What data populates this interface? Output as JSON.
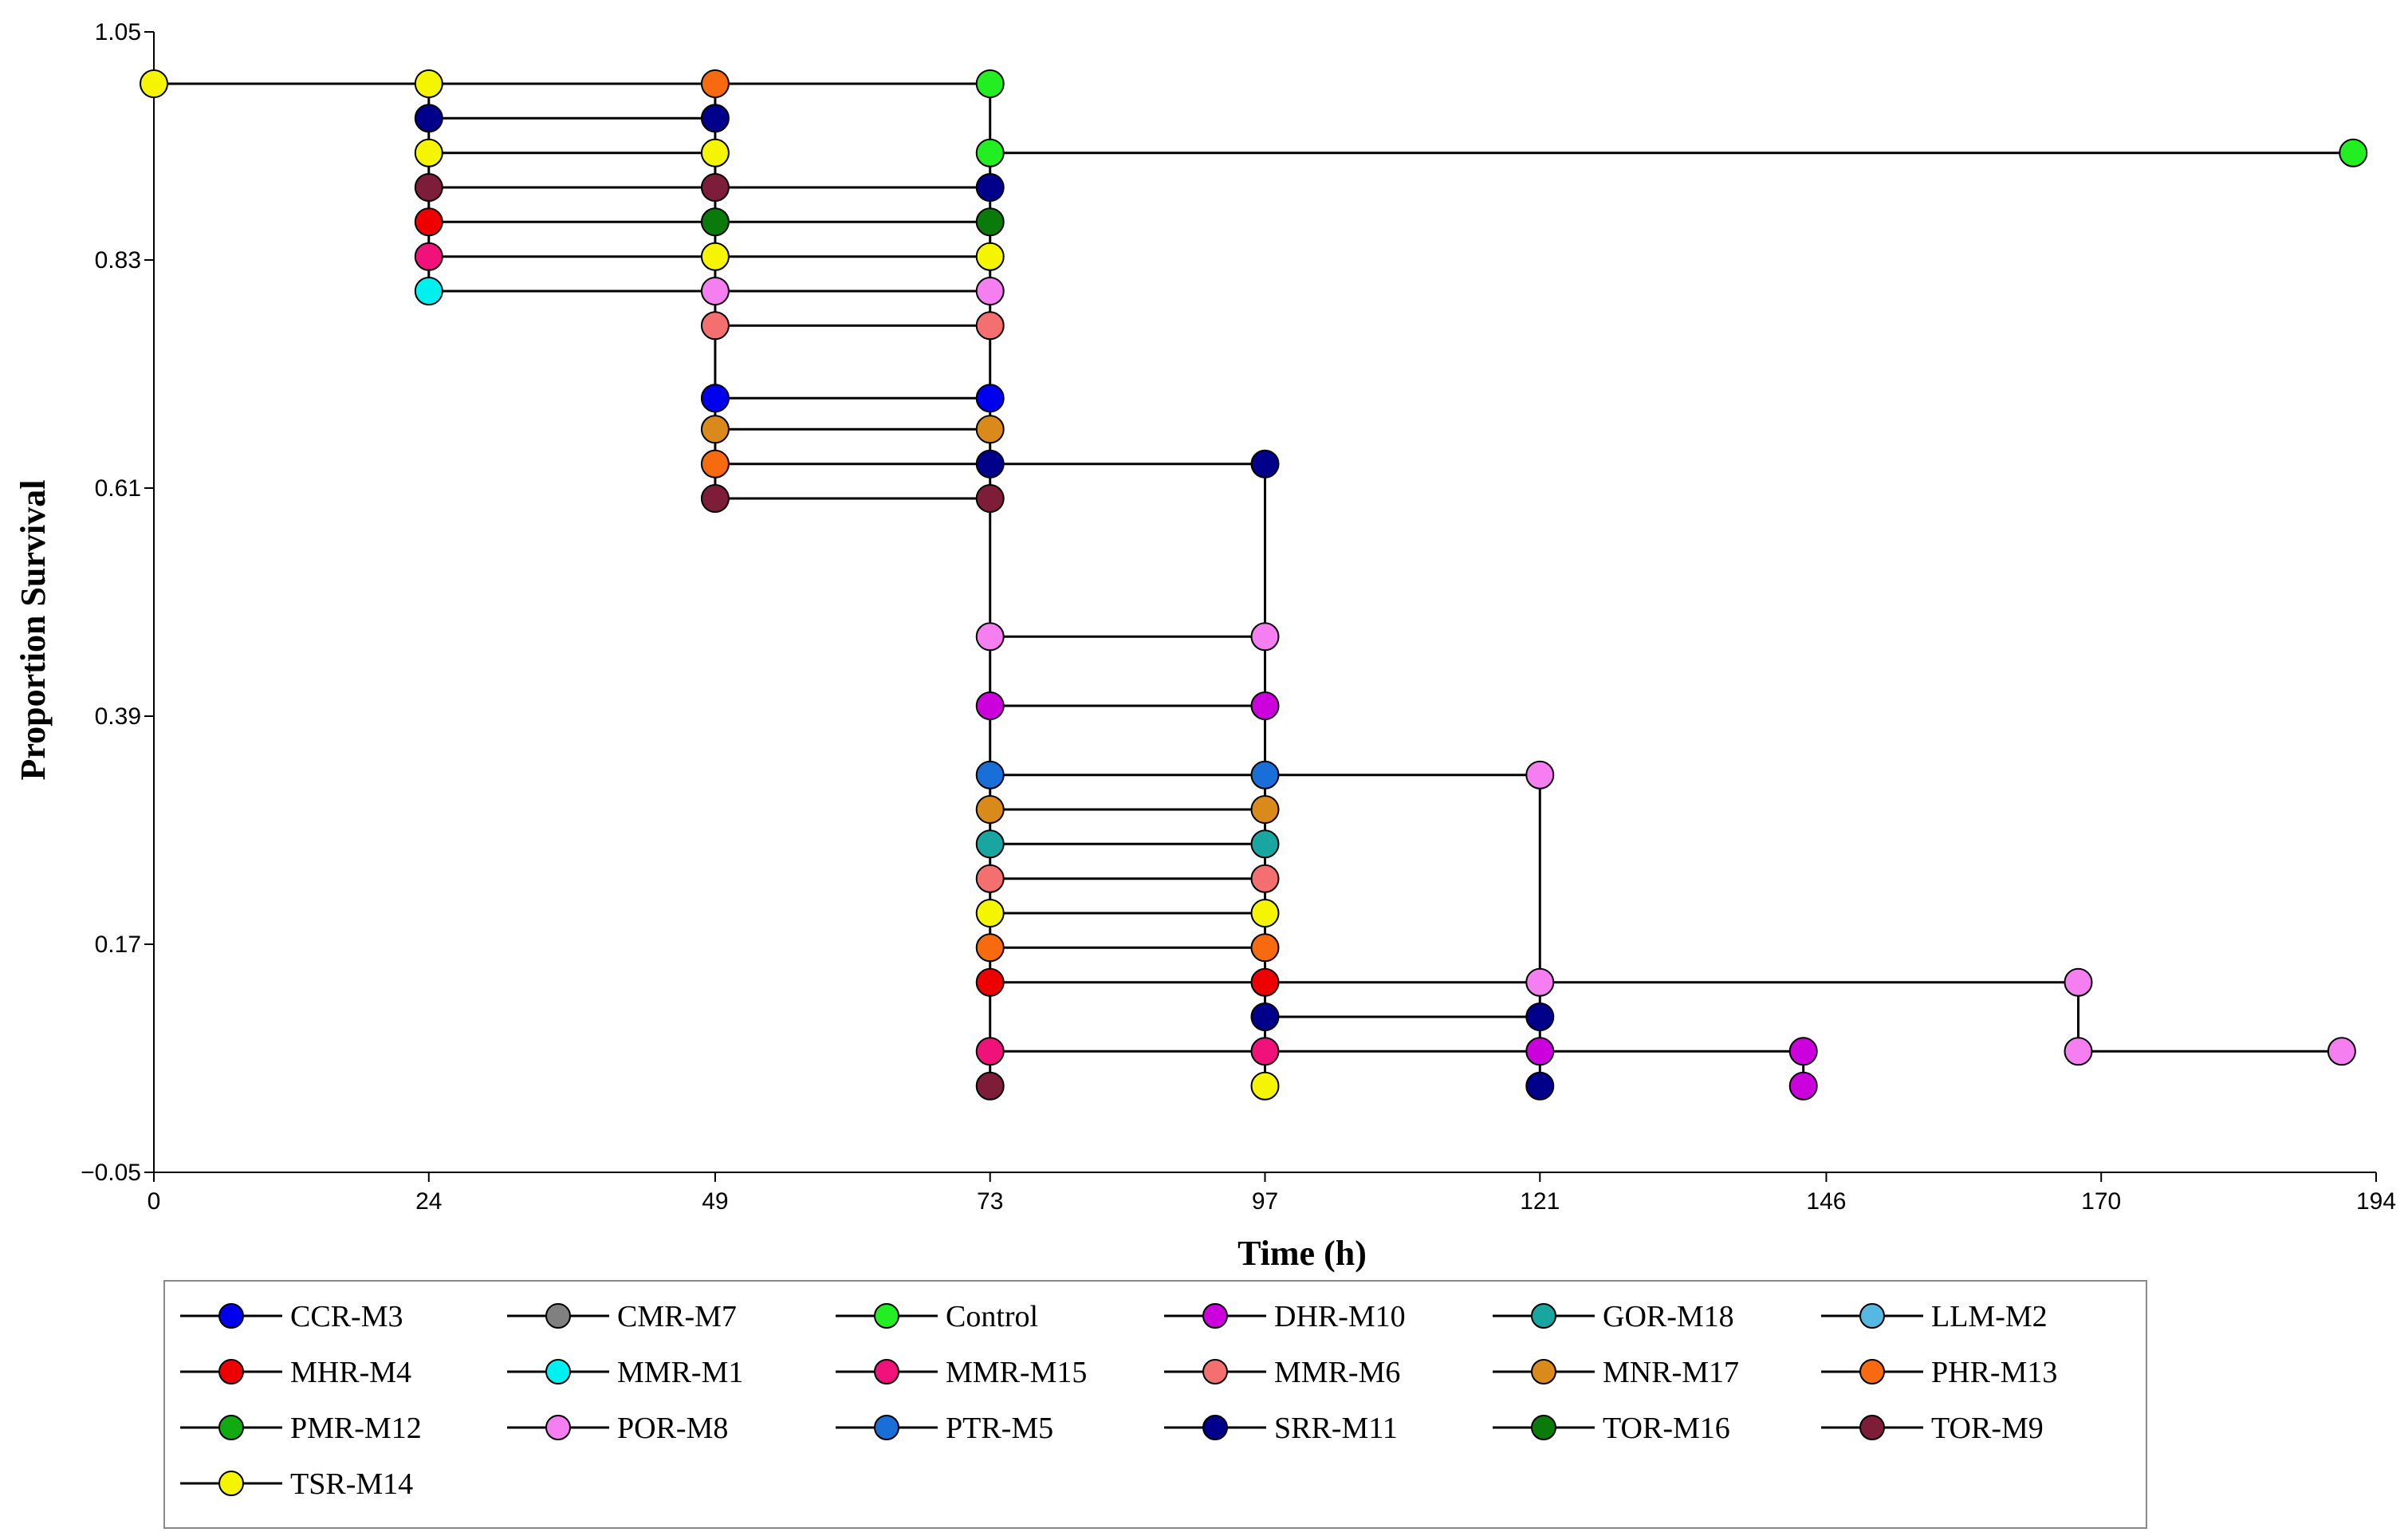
{
  "chart_data": {
    "type": "line",
    "subtype": "kaplan-meier step survival",
    "title": "",
    "xlabel": "Time (h)",
    "ylabel": "Proportion Survival",
    "xlim": [
      0,
      194
    ],
    "ylim": [
      -0.05,
      1.05
    ],
    "x_ticks": [
      0,
      24,
      49,
      73,
      97,
      121,
      146,
      170,
      194
    ],
    "y_ticks": [
      -0.05,
      0.17,
      0.39,
      0.61,
      0.83,
      1.05
    ],
    "y_tick_labels": [
      "−0.05",
      "0.17",
      "0.39",
      "0.61",
      "0.83",
      "1.05"
    ],
    "grid": false,
    "legend_position": "bottom",
    "series": [
      {
        "name": "CCR-M3",
        "color": "#0000ee",
        "x": [
          0,
          24,
          49,
          73
        ],
        "y": [
          1.0,
          1.0,
          0.6967,
          0.6967
        ]
      },
      {
        "name": "CMR-M7",
        "color": "#808080",
        "x": [],
        "y": []
      },
      {
        "name": "Control",
        "color": "#22ee22",
        "x": [
          0,
          24,
          49,
          73,
          73,
          192
        ],
        "y": [
          1.0,
          1.0,
          1.0,
          1.0,
          0.9333,
          0.9333
        ]
      },
      {
        "name": "DHR-M10",
        "color": "#cc00dd",
        "x": [
          0,
          24,
          49,
          73,
          97,
          121,
          144,
          144
        ],
        "y": [
          1.0,
          1.0,
          1.0,
          0.4,
          0.4,
          0.0667,
          0.0667,
          0.0333
        ]
      },
      {
        "name": "GOR-M18",
        "color": "#1aa6a0",
        "x": [
          0,
          24,
          49,
          73,
          97
        ],
        "y": [
          1.0,
          1.0,
          1.0,
          0.2667,
          0.2667
        ]
      },
      {
        "name": "LLM-M2",
        "color": "#55b8e0",
        "x": [],
        "y": []
      },
      {
        "name": "MHR-M4",
        "color": "#ee0000",
        "x": [
          0,
          24,
          49,
          73,
          97
        ],
        "y": [
          1.0,
          0.8667,
          0.8667,
          0.1333,
          0.1333
        ]
      },
      {
        "name": "MMR-M1",
        "color": "#00f0f0",
        "x": [
          0,
          24,
          49
        ],
        "y": [
          1.0,
          0.8,
          0.8
        ]
      },
      {
        "name": "MMR-M15",
        "color": "#f0127a",
        "x": [
          0,
          24,
          49,
          73,
          97
        ],
        "y": [
          1.0,
          0.8333,
          0.8333,
          0.0667,
          0.0667
        ]
      },
      {
        "name": "MMR-M6",
        "color": "#f47070",
        "x": [
          0,
          24,
          49,
          73,
          97
        ],
        "y": [
          1.0,
          1.0,
          0.7667,
          0.2333,
          0.2333
        ]
      },
      {
        "name": "MNR-M17",
        "color": "#d98a1a",
        "x": [
          0,
          24,
          49,
          73,
          97
        ],
        "y": [
          1.0,
          1.0,
          0.6667,
          0.3,
          0.3
        ]
      },
      {
        "name": "PHR-M13",
        "color": "#f86a10",
        "x": [
          0,
          24,
          49,
          73,
          97
        ],
        "y": [
          1.0,
          1.0,
          0.6333,
          0.1667,
          0.1667
        ]
      },
      {
        "name": "PMR-M12",
        "color": "#11aa11",
        "x": [],
        "y": []
      },
      {
        "name": "POR-M8",
        "color": "#f57ef0",
        "x": [
          0,
          24,
          49,
          73,
          97,
          121,
          121,
          168,
          168,
          191
        ],
        "y": [
          1.0,
          1.0,
          0.8,
          0.4667,
          0.4667,
          0.3333,
          0.1333,
          0.1333,
          0.0667,
          0.0667
        ]
      },
      {
        "name": "PTR-M5",
        "color": "#1a6ed8",
        "x": [
          0,
          24,
          49,
          73,
          97,
          121
        ],
        "y": [
          1.0,
          1.0,
          1.0,
          0.3333,
          0.3333,
          0.3333
        ]
      },
      {
        "name": "SRR-M11",
        "color": "#00008b",
        "x": [
          0,
          24,
          49,
          73,
          97,
          121,
          121
        ],
        "y": [
          1.0,
          0.9667,
          0.9667,
          0.6333,
          0.6333,
          0.1,
          0.0333
        ]
      },
      {
        "name": "TOR-M16",
        "color": "#0a7a0a",
        "x": [
          0,
          24,
          49,
          73
        ],
        "y": [
          1.0,
          1.0,
          0.8667,
          0.8667
        ]
      },
      {
        "name": "TOR-M9",
        "color": "#7d1d3a",
        "x": [
          0,
          24,
          49,
          73,
          73
        ],
        "y": [
          1.0,
          0.9,
          0.9,
          0.6,
          0.0333
        ]
      },
      {
        "name": "TSR-M14",
        "color": "#f5f500",
        "x": [
          0,
          24,
          49,
          73,
          97,
          97
        ],
        "y": [
          1.0,
          1.0,
          0.9333,
          0.8333,
          0.2,
          0.0333
        ]
      }
    ],
    "step_segments": [
      {
        "x1": 0,
        "x2": 73,
        "y": 1.0
      },
      {
        "x1": 24,
        "x2": 49,
        "y": 0.9667
      },
      {
        "x1": 24,
        "x2": 49,
        "y": 0.9333
      },
      {
        "x1": 24,
        "x2": 73,
        "y": 0.9
      },
      {
        "x1": 24,
        "x2": 73,
        "y": 0.8667
      },
      {
        "x1": 24,
        "x2": 73,
        "y": 0.8333
      },
      {
        "x1": 24,
        "x2": 73,
        "y": 0.8
      },
      {
        "x1": 49,
        "x2": 73,
        "y": 0.7667
      },
      {
        "x1": 49,
        "x2": 73,
        "y": 0.6967
      },
      {
        "x1": 49,
        "x2": 73,
        "y": 0.6667
      },
      {
        "x1": 49,
        "x2": 97,
        "y": 0.6333
      },
      {
        "x1": 49,
        "x2": 73,
        "y": 0.6
      },
      {
        "x1": 73,
        "x2": 192,
        "y": 0.9333
      },
      {
        "x1": 73,
        "x2": 97,
        "y": 0.4667
      },
      {
        "x1": 73,
        "x2": 97,
        "y": 0.4
      },
      {
        "x1": 73,
        "x2": 121,
        "y": 0.3333
      },
      {
        "x1": 73,
        "x2": 97,
        "y": 0.3
      },
      {
        "x1": 73,
        "x2": 97,
        "y": 0.2667
      },
      {
        "x1": 73,
        "x2": 97,
        "y": 0.2333
      },
      {
        "x1": 73,
        "x2": 97,
        "y": 0.2
      },
      {
        "x1": 73,
        "x2": 97,
        "y": 0.1667
      },
      {
        "x1": 73,
        "x2": 168,
        "y": 0.1333
      },
      {
        "x1": 97,
        "x2": 121,
        "y": 0.1
      },
      {
        "x1": 73,
        "x2": 144,
        "y": 0.0667
      },
      {
        "x1": 168,
        "x2": 191,
        "y": 0.0667
      },
      {
        "x1": 24,
        "x2": 24,
        "y1": 1.0,
        "y2": 0.8
      },
      {
        "x1": 49,
        "x2": 49,
        "y1": 1.0,
        "y2": 0.6
      },
      {
        "x1": 73,
        "x2": 73,
        "y1": 1.0,
        "y2": 0.0333
      },
      {
        "x1": 97,
        "x2": 97,
        "y1": 0.6333,
        "y2": 0.0333
      },
      {
        "x1": 121,
        "x2": 121,
        "y1": 0.3333,
        "y2": 0.0333
      },
      {
        "x1": 144,
        "x2": 144,
        "y1": 0.0667,
        "y2": 0.0333
      },
      {
        "x1": 168,
        "x2": 168,
        "y1": 0.1333,
        "y2": 0.0667
      }
    ],
    "points": [
      {
        "x": 0,
        "y": 1.0,
        "series": "TSR-M14"
      },
      {
        "x": 24,
        "y": 1.0,
        "series": "TSR-M14"
      },
      {
        "x": 24,
        "y": 0.9667,
        "series": "SRR-M11"
      },
      {
        "x": 24,
        "y": 0.9333,
        "series": "TSR-M14"
      },
      {
        "x": 24,
        "y": 0.9,
        "series": "TOR-M9"
      },
      {
        "x": 24,
        "y": 0.8667,
        "series": "MHR-M4"
      },
      {
        "x": 24,
        "y": 0.8333,
        "series": "MMR-M15"
      },
      {
        "x": 24,
        "y": 0.8,
        "series": "MMR-M1"
      },
      {
        "x": 49,
        "y": 1.0,
        "series": "PHR-M13"
      },
      {
        "x": 49,
        "y": 0.9667,
        "series": "SRR-M11"
      },
      {
        "x": 49,
        "y": 0.9333,
        "series": "TSR-M14"
      },
      {
        "x": 49,
        "y": 0.9,
        "series": "TOR-M9"
      },
      {
        "x": 49,
        "y": 0.8667,
        "series": "TOR-M16"
      },
      {
        "x": 49,
        "y": 0.8333,
        "series": "TSR-M14"
      },
      {
        "x": 49,
        "y": 0.8,
        "series": "POR-M8"
      },
      {
        "x": 49,
        "y": 0.7667,
        "series": "MMR-M6"
      },
      {
        "x": 49,
        "y": 0.6967,
        "series": "CCR-M3"
      },
      {
        "x": 49,
        "y": 0.6667,
        "series": "MNR-M17"
      },
      {
        "x": 49,
        "y": 0.6333,
        "series": "PHR-M13"
      },
      {
        "x": 49,
        "y": 0.6,
        "series": "TOR-M9"
      },
      {
        "x": 73,
        "y": 1.0,
        "series": "Control"
      },
      {
        "x": 73,
        "y": 0.9333,
        "series": "Control"
      },
      {
        "x": 73,
        "y": 0.9,
        "series": "SRR-M11"
      },
      {
        "x": 73,
        "y": 0.8667,
        "series": "TOR-M16"
      },
      {
        "x": 73,
        "y": 0.8333,
        "series": "TSR-M14"
      },
      {
        "x": 73,
        "y": 0.8,
        "series": "POR-M8"
      },
      {
        "x": 73,
        "y": 0.7667,
        "series": "MMR-M6"
      },
      {
        "x": 73,
        "y": 0.6967,
        "series": "CCR-M3"
      },
      {
        "x": 73,
        "y": 0.6667,
        "series": "MNR-M17"
      },
      {
        "x": 73,
        "y": 0.6333,
        "series": "SRR-M11"
      },
      {
        "x": 73,
        "y": 0.6,
        "series": "TOR-M9"
      },
      {
        "x": 73,
        "y": 0.4667,
        "series": "POR-M8"
      },
      {
        "x": 73,
        "y": 0.4,
        "series": "DHR-M10"
      },
      {
        "x": 73,
        "y": 0.3333,
        "series": "PTR-M5"
      },
      {
        "x": 73,
        "y": 0.3,
        "series": "MNR-M17"
      },
      {
        "x": 73,
        "y": 0.2667,
        "series": "GOR-M18"
      },
      {
        "x": 73,
        "y": 0.2333,
        "series": "MMR-M6"
      },
      {
        "x": 73,
        "y": 0.2,
        "series": "TSR-M14"
      },
      {
        "x": 73,
        "y": 0.1667,
        "series": "PHR-M13"
      },
      {
        "x": 73,
        "y": 0.1333,
        "series": "MHR-M4"
      },
      {
        "x": 73,
        "y": 0.0667,
        "series": "MMR-M15"
      },
      {
        "x": 73,
        "y": 0.0333,
        "series": "TOR-M9"
      },
      {
        "x": 97,
        "y": 0.6333,
        "series": "SRR-M11"
      },
      {
        "x": 97,
        "y": 0.4667,
        "series": "POR-M8"
      },
      {
        "x": 97,
        "y": 0.4,
        "series": "DHR-M10"
      },
      {
        "x": 97,
        "y": 0.3333,
        "series": "PTR-M5"
      },
      {
        "x": 97,
        "y": 0.3,
        "series": "MNR-M17"
      },
      {
        "x": 97,
        "y": 0.2667,
        "series": "GOR-M18"
      },
      {
        "x": 97,
        "y": 0.2333,
        "series": "MMR-M6"
      },
      {
        "x": 97,
        "y": 0.2,
        "series": "TSR-M14"
      },
      {
        "x": 97,
        "y": 0.1667,
        "series": "PHR-M13"
      },
      {
        "x": 97,
        "y": 0.1333,
        "series": "MHR-M4"
      },
      {
        "x": 97,
        "y": 0.1,
        "series": "SRR-M11"
      },
      {
        "x": 97,
        "y": 0.0667,
        "series": "MMR-M15"
      },
      {
        "x": 97,
        "y": 0.0333,
        "series": "TSR-M14"
      },
      {
        "x": 121,
        "y": 0.3333,
        "series": "POR-M8"
      },
      {
        "x": 121,
        "y": 0.1333,
        "series": "POR-M8"
      },
      {
        "x": 121,
        "y": 0.1,
        "series": "SRR-M11"
      },
      {
        "x": 121,
        "y": 0.0667,
        "series": "DHR-M10"
      },
      {
        "x": 121,
        "y": 0.0333,
        "series": "SRR-M11"
      },
      {
        "x": 144,
        "y": 0.0667,
        "series": "DHR-M10"
      },
      {
        "x": 144,
        "y": 0.0333,
        "series": "DHR-M10"
      },
      {
        "x": 168,
        "y": 0.1333,
        "series": "POR-M8"
      },
      {
        "x": 168,
        "y": 0.0667,
        "series": "POR-M8"
      },
      {
        "x": 191,
        "y": 0.0667,
        "series": "POR-M8"
      },
      {
        "x": 192,
        "y": 0.9333,
        "series": "Control"
      }
    ]
  }
}
